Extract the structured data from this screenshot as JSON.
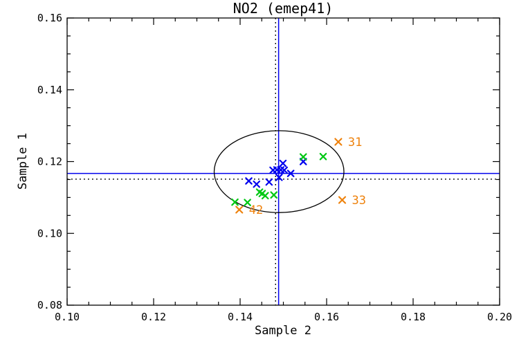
{
  "chart_data": {
    "type": "scatter",
    "title": "NO2 (emep41)",
    "xlabel": "Sample 2",
    "ylabel": "Sample 1",
    "xlim": [
      0.1,
      0.2
    ],
    "ylim": [
      0.08,
      0.16
    ],
    "x_major_ticks": [
      0.1,
      0.12,
      0.14,
      0.16,
      0.18,
      0.2
    ],
    "x_tick_labels": [
      "0.10",
      "0.12",
      "0.14",
      "0.16",
      "0.18",
      "0.20"
    ],
    "y_major_ticks": [
      0.08,
      0.1,
      0.12,
      0.14,
      0.16
    ],
    "y_tick_labels": [
      "0.08",
      "0.10",
      "0.12",
      "0.14",
      "0.16"
    ],
    "minor_tick_step": 0.005,
    "grid": false,
    "legend": "none",
    "frame_color": "#000000",
    "series": [
      {
        "name": "blue-stations",
        "color": "#0000EE",
        "marker": "x",
        "points": [
          [
            0.1499,
            0.1195
          ],
          [
            0.1476,
            0.1176
          ],
          [
            0.1485,
            0.1177
          ],
          [
            0.1494,
            0.1177
          ],
          [
            0.1502,
            0.1176
          ],
          [
            0.1517,
            0.1167
          ],
          [
            0.149,
            0.1156
          ],
          [
            0.142,
            0.1146
          ],
          [
            0.1438,
            0.1137
          ],
          [
            0.1467,
            0.1143
          ],
          [
            0.1546,
            0.12
          ]
        ]
      },
      {
        "name": "green-stations",
        "color": "#00C814",
        "marker": "x",
        "points": [
          [
            0.1546,
            0.1213
          ],
          [
            0.1592,
            0.1214
          ],
          [
            0.1445,
            0.1115
          ],
          [
            0.1451,
            0.1111
          ],
          [
            0.1458,
            0.1105
          ],
          [
            0.1478,
            0.1107
          ],
          [
            0.1388,
            0.1087
          ],
          [
            0.1417,
            0.1086
          ]
        ]
      },
      {
        "name": "labeled-outlier-stations",
        "color": "#EE820D",
        "marker": "x",
        "points": [
          [
            0.1627,
            0.1255
          ],
          [
            0.1636,
            0.1093
          ],
          [
            0.1398,
            0.1066
          ]
        ],
        "labels": [
          "31",
          "33",
          "42"
        ]
      }
    ],
    "reference_lines": [
      {
        "name": "mean-line-horizontal",
        "axis": "y",
        "value": 0.1167,
        "color": "#0000EE",
        "style": "solid"
      },
      {
        "name": "median-line-horizontal",
        "axis": "y",
        "value": 0.1151,
        "color": "#000000",
        "style": "dotted"
      },
      {
        "name": "mean-line-vertical",
        "axis": "x",
        "value": 0.1489,
        "color": "#0000EE",
        "style": "solid"
      },
      {
        "name": "median-line-vertical",
        "axis": "x",
        "value": 0.1482,
        "color": "#000000",
        "style": "dotted"
      }
    ],
    "ellipse": {
      "cx": 0.149,
      "cy": 0.1172,
      "rx": 0.015,
      "ry": 0.0114,
      "color": "#000000"
    }
  }
}
